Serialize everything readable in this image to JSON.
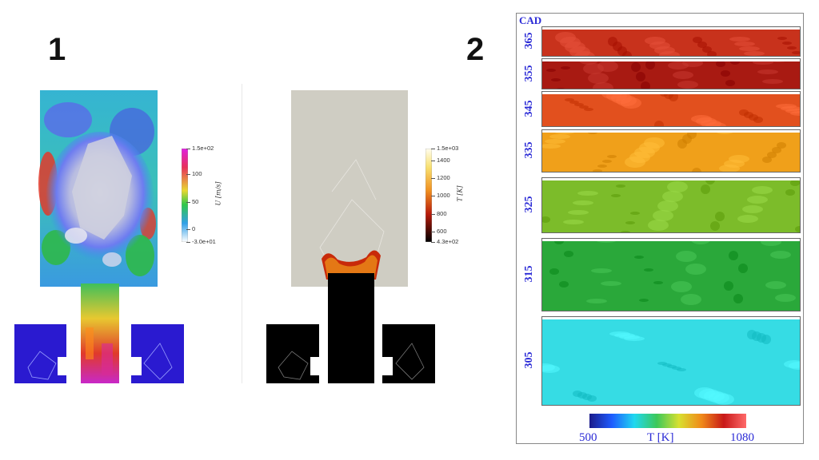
{
  "panel_1_label": "1",
  "panel_2_label": "2",
  "velocity_colorbar": {
    "max_label": "1.5e+02",
    "ticks": [
      "100",
      "50",
      "0"
    ],
    "min_label": "-3.0e+01",
    "quantity_label": "U [m/s]"
  },
  "temperature_colorbar": {
    "max_label": "1.5e+03",
    "ticks": [
      "1400",
      "1200",
      "1000",
      "800",
      "600"
    ],
    "min_label": "4.3e+02",
    "quantity_label": "T [K]"
  },
  "cad_panel": {
    "header": "CAD",
    "strips": [
      {
        "cad": "365",
        "color": "#c8321c"
      },
      {
        "cad": "355",
        "color": "#a81a12"
      },
      {
        "cad": "345",
        "color": "#e2501e"
      },
      {
        "cad": "335",
        "color": "#f0a01a"
      },
      {
        "cad": "325",
        "color": "#7cbc2a"
      },
      {
        "cad": "315",
        "color": "#2aa83a"
      },
      {
        "cad": "305",
        "color": "#36dce4"
      }
    ],
    "colorbar": {
      "min_label": "500",
      "axis_label": "T  [K]",
      "max_label": "1080",
      "colors": [
        "#1b1b8a",
        "#1e5cff",
        "#20d8f0",
        "#3cc85a",
        "#d8e030",
        "#f08a1a",
        "#c81818",
        "#ff6a6a"
      ]
    }
  }
}
